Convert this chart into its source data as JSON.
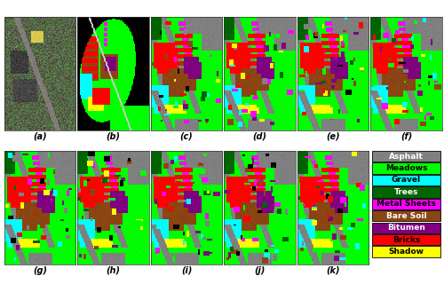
{
  "legend_items": [
    {
      "label": "Asphalt",
      "color": "#808080"
    },
    {
      "label": "Meadows",
      "color": "#00ff00"
    },
    {
      "label": "Gravel",
      "color": "#00ffff"
    },
    {
      "label": "Trees",
      "color": "#006400"
    },
    {
      "label": "Metal Sheets",
      "color": "#ff00ff"
    },
    {
      "label": "Bare Soil",
      "color": "#8b4513"
    },
    {
      "label": "Bitumen",
      "color": "#800080"
    },
    {
      "label": "Bricks",
      "color": "#ff0000"
    },
    {
      "label": "Shadow",
      "color": "#ffff00"
    }
  ],
  "labels": [
    "(a)",
    "(b)",
    "(c)",
    "(d)",
    "(e)",
    "(f)",
    "(g)",
    "(h)",
    "(i)",
    "(j)",
    "(k)"
  ],
  "legend_text_color": "#000000",
  "legend_box_edge": "#000000",
  "background_color": "#ffffff",
  "label_fontsize": 7,
  "legend_fontsize": 6.5,
  "fig_width": 5.0,
  "fig_height": 3.2,
  "dpi": 100
}
